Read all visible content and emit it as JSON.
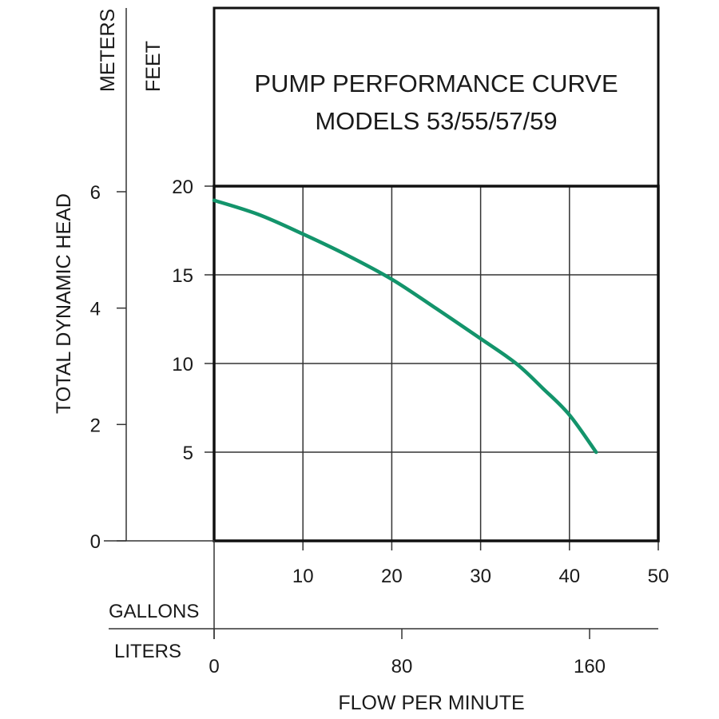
{
  "chart_data": {
    "type": "line",
    "title": "PUMP PERFORMANCE CURVE",
    "subtitle": "MODELS 53/55/57/59",
    "ylabel": "TOTAL DYNAMIC HEAD",
    "xlabel": "FLOW PER MINUTE",
    "y_axes": {
      "feet": {
        "label": "FEET",
        "range": [
          0,
          20
        ],
        "ticks": [
          "5",
          "10",
          "15",
          "20"
        ],
        "tick_values": [
          5,
          10,
          15,
          20
        ]
      },
      "meters": {
        "label": "METERS",
        "ticks": [
          "0",
          "2",
          "4",
          "6"
        ],
        "tick_values": [
          0,
          2,
          4,
          6
        ]
      }
    },
    "x_axes": {
      "gallons": {
        "label": "GALLONS",
        "range": [
          0,
          50
        ],
        "ticks": [
          "10",
          "20",
          "30",
          "40",
          "50"
        ],
        "tick_values": [
          10,
          20,
          30,
          40,
          50
        ]
      },
      "liters": {
        "label": "LITERS",
        "ticks": [
          "0",
          "80",
          "160"
        ],
        "tick_values": [
          0,
          80,
          160
        ]
      }
    },
    "grid": true,
    "series": [
      {
        "x_units": "gallons",
        "y_units": "feet",
        "color": "#13946b",
        "points": [
          [
            0,
            19.2
          ],
          [
            5,
            18.4
          ],
          [
            10,
            17.3
          ],
          [
            15,
            16.1
          ],
          [
            20,
            14.75
          ],
          [
            25,
            13.1
          ],
          [
            30,
            11.4
          ],
          [
            34,
            10.0
          ],
          [
            37,
            8.6
          ],
          [
            40,
            7.1
          ],
          [
            43,
            5.0
          ]
        ]
      }
    ]
  }
}
